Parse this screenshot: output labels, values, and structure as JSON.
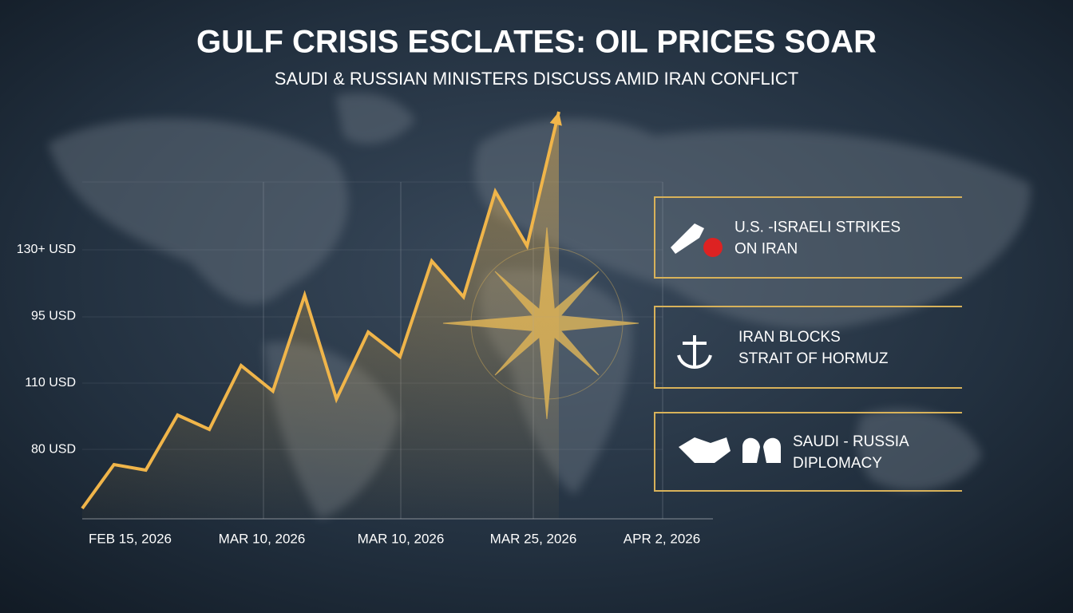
{
  "chart_data": {
    "type": "line",
    "title": "GULF CRISIS ESCLATES: OIL PRICES SOAR",
    "subtitle": "SAUDI & RUSSIAN MINISTERS DISCUSS AMID IRAN CONFLICT",
    "y_labels": [
      "130+ USD",
      "95 USD",
      "110 USD",
      "80 USD"
    ],
    "x_labels": [
      "FEB 15, 2026",
      "MAR 10, 2026",
      "MAR 10, 2026",
      "MAR 25, 2026",
      "APR 2, 2026"
    ],
    "values": [
      65.2,
      76.2,
      74.8,
      88.6,
      85,
      101,
      94.6,
      118.6,
      92.6,
      109.4,
      103.2,
      127.2,
      118.2,
      144.6,
      131,
      164.6
    ],
    "ylim": [
      62,
      165
    ],
    "color": "#f0b54a"
  },
  "panels": [
    {
      "lines": [
        "U.S. -ISRAELI STRIKES",
        "ON IRAN"
      ]
    },
    {
      "lines": [
        "IRAN BLOCKS",
        "STRAIT OF HORMUZ"
      ]
    },
    {
      "lines": [
        "SAUDI - RUSSIA",
        "DIPLOMACY"
      ]
    }
  ]
}
